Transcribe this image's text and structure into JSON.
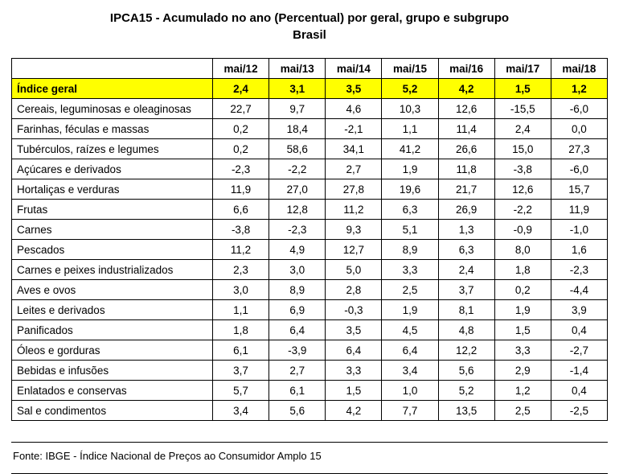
{
  "title": {
    "line1": "IPCA15 - Acumulado no ano (Percentual) por geral, grupo e subgrupo",
    "line2": "Brasil"
  },
  "chart_data": {
    "type": "table",
    "title": "IPCA15 - Acumulado no ano (Percentual) por geral, grupo e subgrupo - Brasil",
    "columns": [
      "mai/12",
      "mai/13",
      "mai/14",
      "mai/15",
      "mai/16",
      "mai/17",
      "mai/18"
    ],
    "rows": [
      {
        "label": "Índice geral",
        "values": [
          2.4,
          3.1,
          3.5,
          5.2,
          4.2,
          1.5,
          1.2
        ],
        "highlight": true
      },
      {
        "label": "Cereais, leguminosas e oleaginosas",
        "values": [
          22.7,
          9.7,
          4.6,
          10.3,
          12.6,
          -15.5,
          -6.0
        ],
        "highlight": false
      },
      {
        "label": "Farinhas, féculas e massas",
        "values": [
          0.2,
          18.4,
          -2.1,
          1.1,
          11.4,
          2.4,
          0.0
        ],
        "highlight": false
      },
      {
        "label": "Tubérculos, raízes e legumes",
        "values": [
          0.2,
          58.6,
          34.1,
          41.2,
          26.6,
          15.0,
          27.3
        ],
        "highlight": false
      },
      {
        "label": "Açúcares e derivados",
        "values": [
          -2.3,
          -2.2,
          2.7,
          1.9,
          11.8,
          -3.8,
          -6.0
        ],
        "highlight": false
      },
      {
        "label": "Hortaliças e verduras",
        "values": [
          11.9,
          27.0,
          27.8,
          19.6,
          21.7,
          12.6,
          15.7
        ],
        "highlight": false
      },
      {
        "label": "Frutas",
        "values": [
          6.6,
          12.8,
          11.2,
          6.3,
          26.9,
          -2.2,
          11.9
        ],
        "highlight": false
      },
      {
        "label": "Carnes",
        "values": [
          -3.8,
          -2.3,
          9.3,
          5.1,
          1.3,
          -0.9,
          -1.0
        ],
        "highlight": false
      },
      {
        "label": "Pescados",
        "values": [
          11.2,
          4.9,
          12.7,
          8.9,
          6.3,
          8.0,
          1.6
        ],
        "highlight": false
      },
      {
        "label": "Carnes e peixes industrializados",
        "values": [
          2.3,
          3.0,
          5.0,
          3.3,
          2.4,
          1.8,
          -2.3
        ],
        "highlight": false
      },
      {
        "label": "Aves e ovos",
        "values": [
          3.0,
          8.9,
          2.8,
          2.5,
          3.7,
          0.2,
          -4.4
        ],
        "highlight": false
      },
      {
        "label": "Leites e derivados",
        "values": [
          1.1,
          6.9,
          -0.3,
          1.9,
          8.1,
          1.9,
          3.9
        ],
        "highlight": false
      },
      {
        "label": "Panificados",
        "values": [
          1.8,
          6.4,
          3.5,
          4.5,
          4.8,
          1.5,
          0.4
        ],
        "highlight": false
      },
      {
        "label": "Óleos e gorduras",
        "values": [
          6.1,
          -3.9,
          6.4,
          6.4,
          12.2,
          3.3,
          -2.7
        ],
        "highlight": false
      },
      {
        "label": "Bebidas e infusões",
        "values": [
          3.7,
          2.7,
          3.3,
          3.4,
          5.6,
          2.9,
          -1.4
        ],
        "highlight": false
      },
      {
        "label": "Enlatados e conservas",
        "values": [
          5.7,
          6.1,
          1.5,
          1.0,
          5.2,
          1.2,
          0.4
        ],
        "highlight": false
      },
      {
        "label": "Sal e condimentos",
        "values": [
          3.4,
          5.6,
          4.2,
          7.7,
          13.5,
          2.5,
          -2.5
        ],
        "highlight": false
      }
    ]
  },
  "footer": {
    "source_text": "Fonte: IBGE - Índice Nacional de Preços ao Consumidor Amplo 15"
  },
  "colors": {
    "highlight_row_bg": "#FFFF00",
    "border": "#000000"
  },
  "number_format": {
    "decimals": 1,
    "decimal_separator": ","
  }
}
